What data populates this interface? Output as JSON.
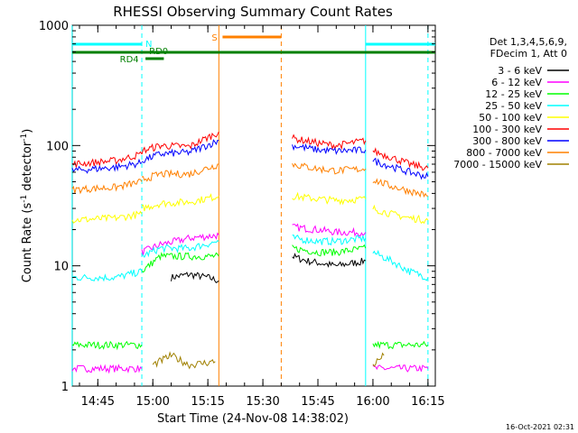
{
  "chart_data": {
    "type": "line",
    "title": "RHESSI Observing Summary Count Rates",
    "xlabel": "Start Time (24-Nov-08 14:38:02)",
    "ylabel_main": "Count Rate (s",
    "ylabel_sup1": "-1",
    "ylabel_mid": " detector",
    "ylabel_sup2": "-1",
    "ylabel_end": ")",
    "y_scale": "log",
    "ylim": [
      1,
      1000
    ],
    "xlim": [
      "14:38:02",
      "16:17:00"
    ],
    "x_ticks": [
      "14:45",
      "15:00",
      "15:15",
      "15:30",
      "15:45",
      "16:00",
      "16:15"
    ],
    "y_ticks": [
      "1",
      "10",
      "100",
      "1000"
    ],
    "grid": false,
    "legend_placement": "right",
    "legend_header": [
      "Det 1,3,4,5,6,9,",
      "FDecim 1, Att 0"
    ],
    "timestamp": "16-Oct-2021 02:31",
    "flag_labels": {
      "N": "N",
      "S": "S",
      "RD0": "RD0",
      "RD4": "RD4"
    },
    "day_night_lines": [
      "14:38",
      "14:57",
      "15:18",
      "15:35",
      "15:58",
      "16:15"
    ],
    "series": [
      {
        "name": "3 - 6 keV",
        "color": "#000000",
        "segments": [
          {
            "t": [
              "15:05",
              "15:10",
              "15:15",
              "15:18"
            ],
            "v": [
              8,
              8.5,
              8,
              7.5
            ]
          },
          {
            "t": [
              "15:38",
              "15:42",
              "15:50",
              "15:58"
            ],
            "v": [
              12,
              11,
              10,
              11
            ]
          }
        ]
      },
      {
        "name": "6 - 12 keV",
        "color": "#ff00ff",
        "segments": [
          {
            "t": [
              "14:38",
              "14:57"
            ],
            "v": [
              1.4,
              1.4
            ]
          },
          {
            "t": [
              "14:57",
              "15:02",
              "15:10",
              "15:18"
            ],
            "v": [
              13,
              15,
              17,
              18
            ]
          },
          {
            "t": [
              "15:38",
              "15:45",
              "15:50",
              "15:58"
            ],
            "v": [
              21,
              20,
              19,
              19
            ]
          },
          {
            "t": [
              "16:00",
              "16:05",
              "16:15"
            ],
            "v": [
              1.4,
              1.4,
              1.4
            ]
          }
        ]
      },
      {
        "name": "12 - 25 keV",
        "color": "#00ff00",
        "segments": [
          {
            "t": [
              "14:38",
              "14:57"
            ],
            "v": [
              2.2,
              2.2
            ]
          },
          {
            "t": [
              "14:57",
              "15:02",
              "15:10",
              "15:18"
            ],
            "v": [
              9,
              12,
              12,
              12
            ]
          },
          {
            "t": [
              "15:38",
              "15:45",
              "15:50",
              "15:58"
            ],
            "v": [
              14,
              13,
              13,
              14
            ]
          },
          {
            "t": [
              "16:00",
              "16:05",
              "16:15"
            ],
            "v": [
              2.2,
              2.2,
              2.2
            ]
          }
        ]
      },
      {
        "name": "25 - 50 keV",
        "color": "#00ffff",
        "segments": [
          {
            "t": [
              "14:38",
              "14:50",
              "14:57"
            ],
            "v": [
              8,
              8,
              9
            ]
          },
          {
            "t": [
              "14:57",
              "15:02",
              "15:10",
              "15:18"
            ],
            "v": [
              12,
              14,
              14,
              16
            ]
          },
          {
            "t": [
              "15:38",
              "15:45",
              "15:50",
              "15:58"
            ],
            "v": [
              17,
              16,
              16,
              17
            ]
          },
          {
            "t": [
              "16:00",
              "16:05",
              "16:10",
              "16:15"
            ],
            "v": [
              13,
              11,
              9,
              8
            ]
          }
        ]
      },
      {
        "name": "50 - 100 keV",
        "color": "#ffff00",
        "segments": [
          {
            "t": [
              "14:38",
              "14:50",
              "14:57"
            ],
            "v": [
              24,
              25,
              27
            ]
          },
          {
            "t": [
              "14:57",
              "15:02",
              "15:10",
              "15:18"
            ],
            "v": [
              30,
              33,
              34,
              38
            ]
          },
          {
            "t": [
              "15:38",
              "15:45",
              "15:50",
              "15:58"
            ],
            "v": [
              38,
              36,
              35,
              36
            ]
          },
          {
            "t": [
              "16:00",
              "16:05",
              "16:10",
              "16:15"
            ],
            "v": [
              30,
              27,
              25,
              24
            ]
          }
        ]
      },
      {
        "name": "100 - 300 keV",
        "color": "#ff0000",
        "segments": [
          {
            "t": [
              "14:38",
              "14:50",
              "14:57"
            ],
            "v": [
              70,
              75,
              85
            ]
          },
          {
            "t": [
              "14:57",
              "15:02",
              "15:10",
              "15:18"
            ],
            "v": [
              90,
              100,
              98,
              130
            ]
          },
          {
            "t": [
              "15:38",
              "15:45",
              "15:50",
              "15:58"
            ],
            "v": [
              115,
              105,
              100,
              110
            ]
          },
          {
            "t": [
              "16:00",
              "16:05",
              "16:10",
              "16:15"
            ],
            "v": [
              90,
              80,
              70,
              65
            ]
          }
        ]
      },
      {
        "name": "300 - 800 keV",
        "color": "#0000ff",
        "segments": [
          {
            "t": [
              "14:38",
              "14:50",
              "14:57"
            ],
            "v": [
              62,
              66,
              72
            ]
          },
          {
            "t": [
              "14:57",
              "15:02",
              "15:10",
              "15:18"
            ],
            "v": [
              75,
              85,
              88,
              110
            ]
          },
          {
            "t": [
              "15:38",
              "15:45",
              "15:50",
              "15:58"
            ],
            "v": [
              100,
              92,
              90,
              92
            ]
          },
          {
            "t": [
              "16:00",
              "16:05",
              "16:10",
              "16:15"
            ],
            "v": [
              75,
              67,
              60,
              55
            ]
          }
        ]
      },
      {
        "name": "800 - 7000 keV",
        "color": "#ff8000",
        "segments": [
          {
            "t": [
              "14:38",
              "14:50",
              "14:57"
            ],
            "v": [
              43,
              45,
              50
            ]
          },
          {
            "t": [
              "14:57",
              "15:02",
              "15:10",
              "15:18"
            ],
            "v": [
              52,
              58,
              58,
              70
            ]
          },
          {
            "t": [
              "15:38",
              "15:45",
              "15:50",
              "15:58"
            ],
            "v": [
              70,
              64,
              62,
              64
            ]
          },
          {
            "t": [
              "16:00",
              "16:05",
              "16:10",
              "16:15"
            ],
            "v": [
              52,
              46,
              42,
              38
            ]
          }
        ]
      },
      {
        "name": "7000 - 15000 keV",
        "color": "#a08000",
        "segments": [
          {
            "t": [
              "15:00",
              "15:05",
              "15:10",
              "15:17"
            ],
            "v": [
              1.5,
              1.8,
              1.5,
              1.6
            ]
          },
          {
            "t": [
              "16:00",
              "16:03"
            ],
            "v": [
              1.5,
              1.8
            ]
          }
        ]
      }
    ]
  }
}
